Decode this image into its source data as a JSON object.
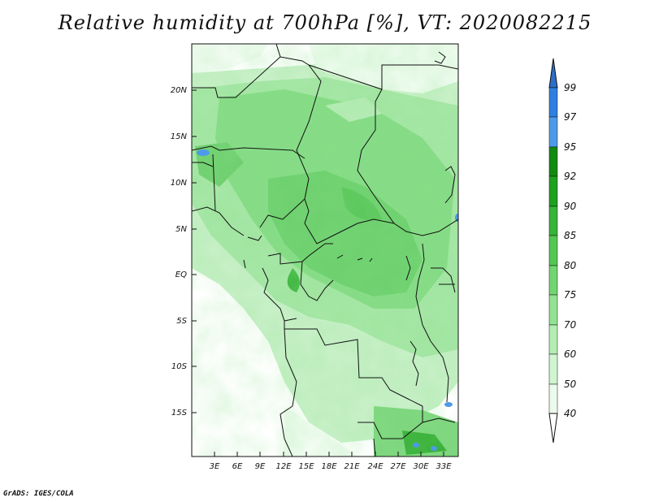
{
  "title": "Relative humidity at 700hPa [%], VT: 2020082215",
  "credit": "GrADS: IGES/COLA",
  "map": {
    "lat_labels": [
      "20N",
      "15N",
      "10N",
      "5N",
      "EQ",
      "5S",
      "10S",
      "15S"
    ],
    "lon_labels": [
      "3E",
      "6E",
      "9E",
      "12E",
      "15E",
      "18E",
      "21E",
      "24E",
      "27E",
      "30E",
      "33E"
    ]
  },
  "colorbar": {
    "labels": [
      "99",
      "97",
      "95",
      "92",
      "90",
      "85",
      "80",
      "75",
      "70",
      "60",
      "50",
      "40"
    ],
    "colors": [
      "#2d6fc9",
      "#2f7fe0",
      "#4d9ae8",
      "#128a12",
      "#1ea11e",
      "#36b536",
      "#52c852",
      "#71d671",
      "#92e292",
      "#b3edb3",
      "#d0f5d0",
      "#ecfbec",
      "#ffffff"
    ]
  }
}
